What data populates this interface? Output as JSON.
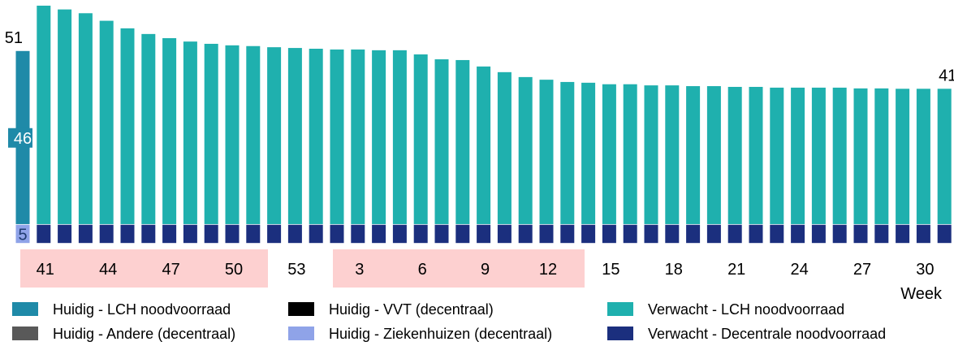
{
  "chart_data": {
    "type": "stacked_bar",
    "xlabel": "Week",
    "categories": [
      null,
      "41",
      null,
      null,
      "44",
      null,
      null,
      "47",
      null,
      null,
      "50",
      null,
      null,
      "53",
      null,
      null,
      "3",
      null,
      null,
      "6",
      null,
      null,
      "9",
      null,
      null,
      "12",
      null,
      null,
      "15",
      null,
      null,
      "18",
      null,
      null,
      "21",
      null,
      null,
      "24",
      null,
      null,
      "27",
      null,
      null,
      "30",
      null
    ],
    "ylim": [
      0,
      64.5
    ],
    "series": [
      {
        "name": "Huidig - LCH noodvoorraad",
        "color": "#1f8aa8",
        "values": [
          46,
          null,
          null,
          null,
          null,
          null,
          null,
          null,
          null,
          null,
          null,
          null,
          null,
          null,
          null,
          null,
          null,
          null,
          null,
          null,
          null,
          null,
          null,
          null,
          null,
          null,
          null,
          null,
          null,
          null,
          null,
          null,
          null,
          null,
          null,
          null,
          null,
          null,
          null,
          null,
          null,
          null,
          null,
          null,
          null
        ]
      },
      {
        "name": "Huidig - VVT (decentraal)",
        "color": "#000000",
        "values": [
          null,
          null,
          null,
          null,
          null,
          null,
          null,
          null,
          null,
          null,
          null,
          null,
          null,
          null,
          null,
          null,
          null,
          null,
          null,
          null,
          null,
          null,
          null,
          null,
          null,
          null,
          null,
          null,
          null,
          null,
          null,
          null,
          null,
          null,
          null,
          null,
          null,
          null,
          null,
          null,
          null,
          null,
          null,
          null,
          null
        ]
      },
      {
        "name": "Verwacht - LCH noodvoorraad",
        "color": "#1fb0ae",
        "values": [
          null,
          58,
          57,
          56,
          54,
          52,
          50.5,
          49.4,
          48.5,
          47.9,
          47.5,
          47.3,
          47,
          46.8,
          46.6,
          46.4,
          46.4,
          46.2,
          46.2,
          45.1,
          43.8,
          43.6,
          41.9,
          40.4,
          39.1,
          38.4,
          37.8,
          37.6,
          37.2,
          37.2,
          36.9,
          36.9,
          36.7,
          36.7,
          36.5,
          36.5,
          36.3,
          36.3,
          36.3,
          36.3,
          36.1,
          36.1,
          36,
          36,
          36
        ]
      },
      {
        "name": "Huidig - Andere (decentraal)",
        "color": "#595959",
        "values": [
          null,
          null,
          null,
          null,
          null,
          null,
          null,
          null,
          null,
          null,
          null,
          null,
          null,
          null,
          null,
          null,
          null,
          null,
          null,
          null,
          null,
          null,
          null,
          null,
          null,
          null,
          null,
          null,
          null,
          null,
          null,
          null,
          null,
          null,
          null,
          null,
          null,
          null,
          null,
          null,
          null,
          null,
          null,
          null,
          null
        ]
      },
      {
        "name": "Huidig - Ziekenhuizen (decentraal)",
        "color": "#8fa3e8",
        "values": [
          5,
          null,
          null,
          null,
          null,
          null,
          null,
          null,
          null,
          null,
          null,
          null,
          null,
          null,
          null,
          null,
          null,
          null,
          null,
          null,
          null,
          null,
          null,
          null,
          null,
          null,
          null,
          null,
          null,
          null,
          null,
          null,
          null,
          null,
          null,
          null,
          null,
          null,
          null,
          null,
          null,
          null,
          null,
          null,
          null
        ]
      },
      {
        "name": "Verwacht - Decentrale noodvoorraad",
        "color": "#1b2f7e",
        "values": [
          null,
          5,
          5,
          5,
          5,
          5,
          5,
          5,
          5,
          5,
          5,
          5,
          5,
          5,
          5,
          5,
          5,
          5,
          5,
          5,
          5,
          5,
          5,
          5,
          5,
          5,
          5,
          5,
          5,
          5,
          5,
          5,
          5,
          5,
          5,
          5,
          5,
          5,
          5,
          5,
          5,
          5,
          5,
          5,
          5
        ]
      }
    ],
    "total_labels": [
      {
        "index": 0,
        "value": 51
      },
      {
        "index": 44,
        "value": 41
      }
    ]
  }
}
